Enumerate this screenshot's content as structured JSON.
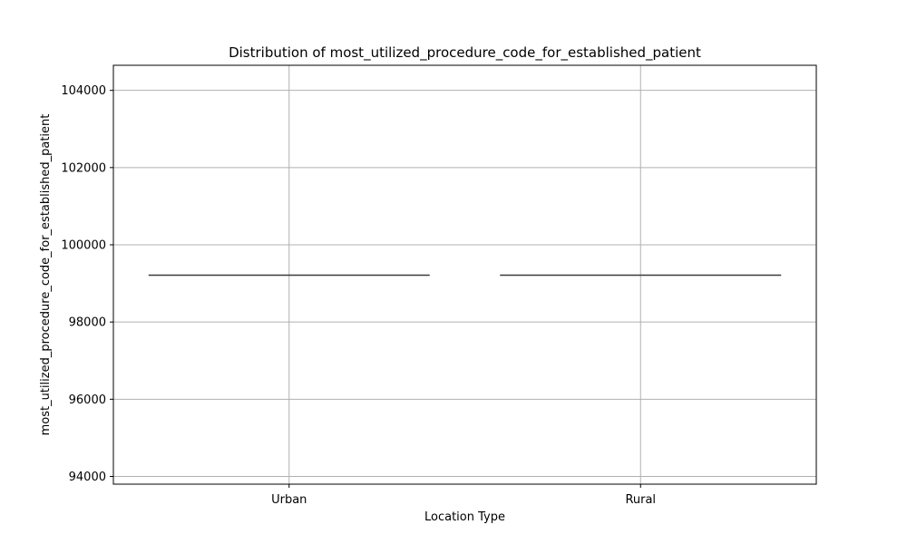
{
  "chart_data": {
    "type": "box",
    "title": "Distribution of most_utilized_procedure_code_for_established_patient",
    "xlabel": "Location Type",
    "ylabel": "most_utilized_procedure_code_for_established_patient",
    "categories": [
      "Urban",
      "Rural"
    ],
    "values": [
      99213,
      99213
    ],
    "ylim": [
      93800,
      104650
    ],
    "yticks": [
      94000,
      96000,
      98000,
      100000,
      102000,
      104000
    ],
    "ytick_labels": [
      "94000",
      "96000",
      "98000",
      "100000",
      "102000",
      "104000"
    ],
    "grid": true,
    "legend": "none",
    "colors": {
      "median_line": "#3a3a3a",
      "grid": "#b0b0b0",
      "axes": "#000000"
    }
  }
}
